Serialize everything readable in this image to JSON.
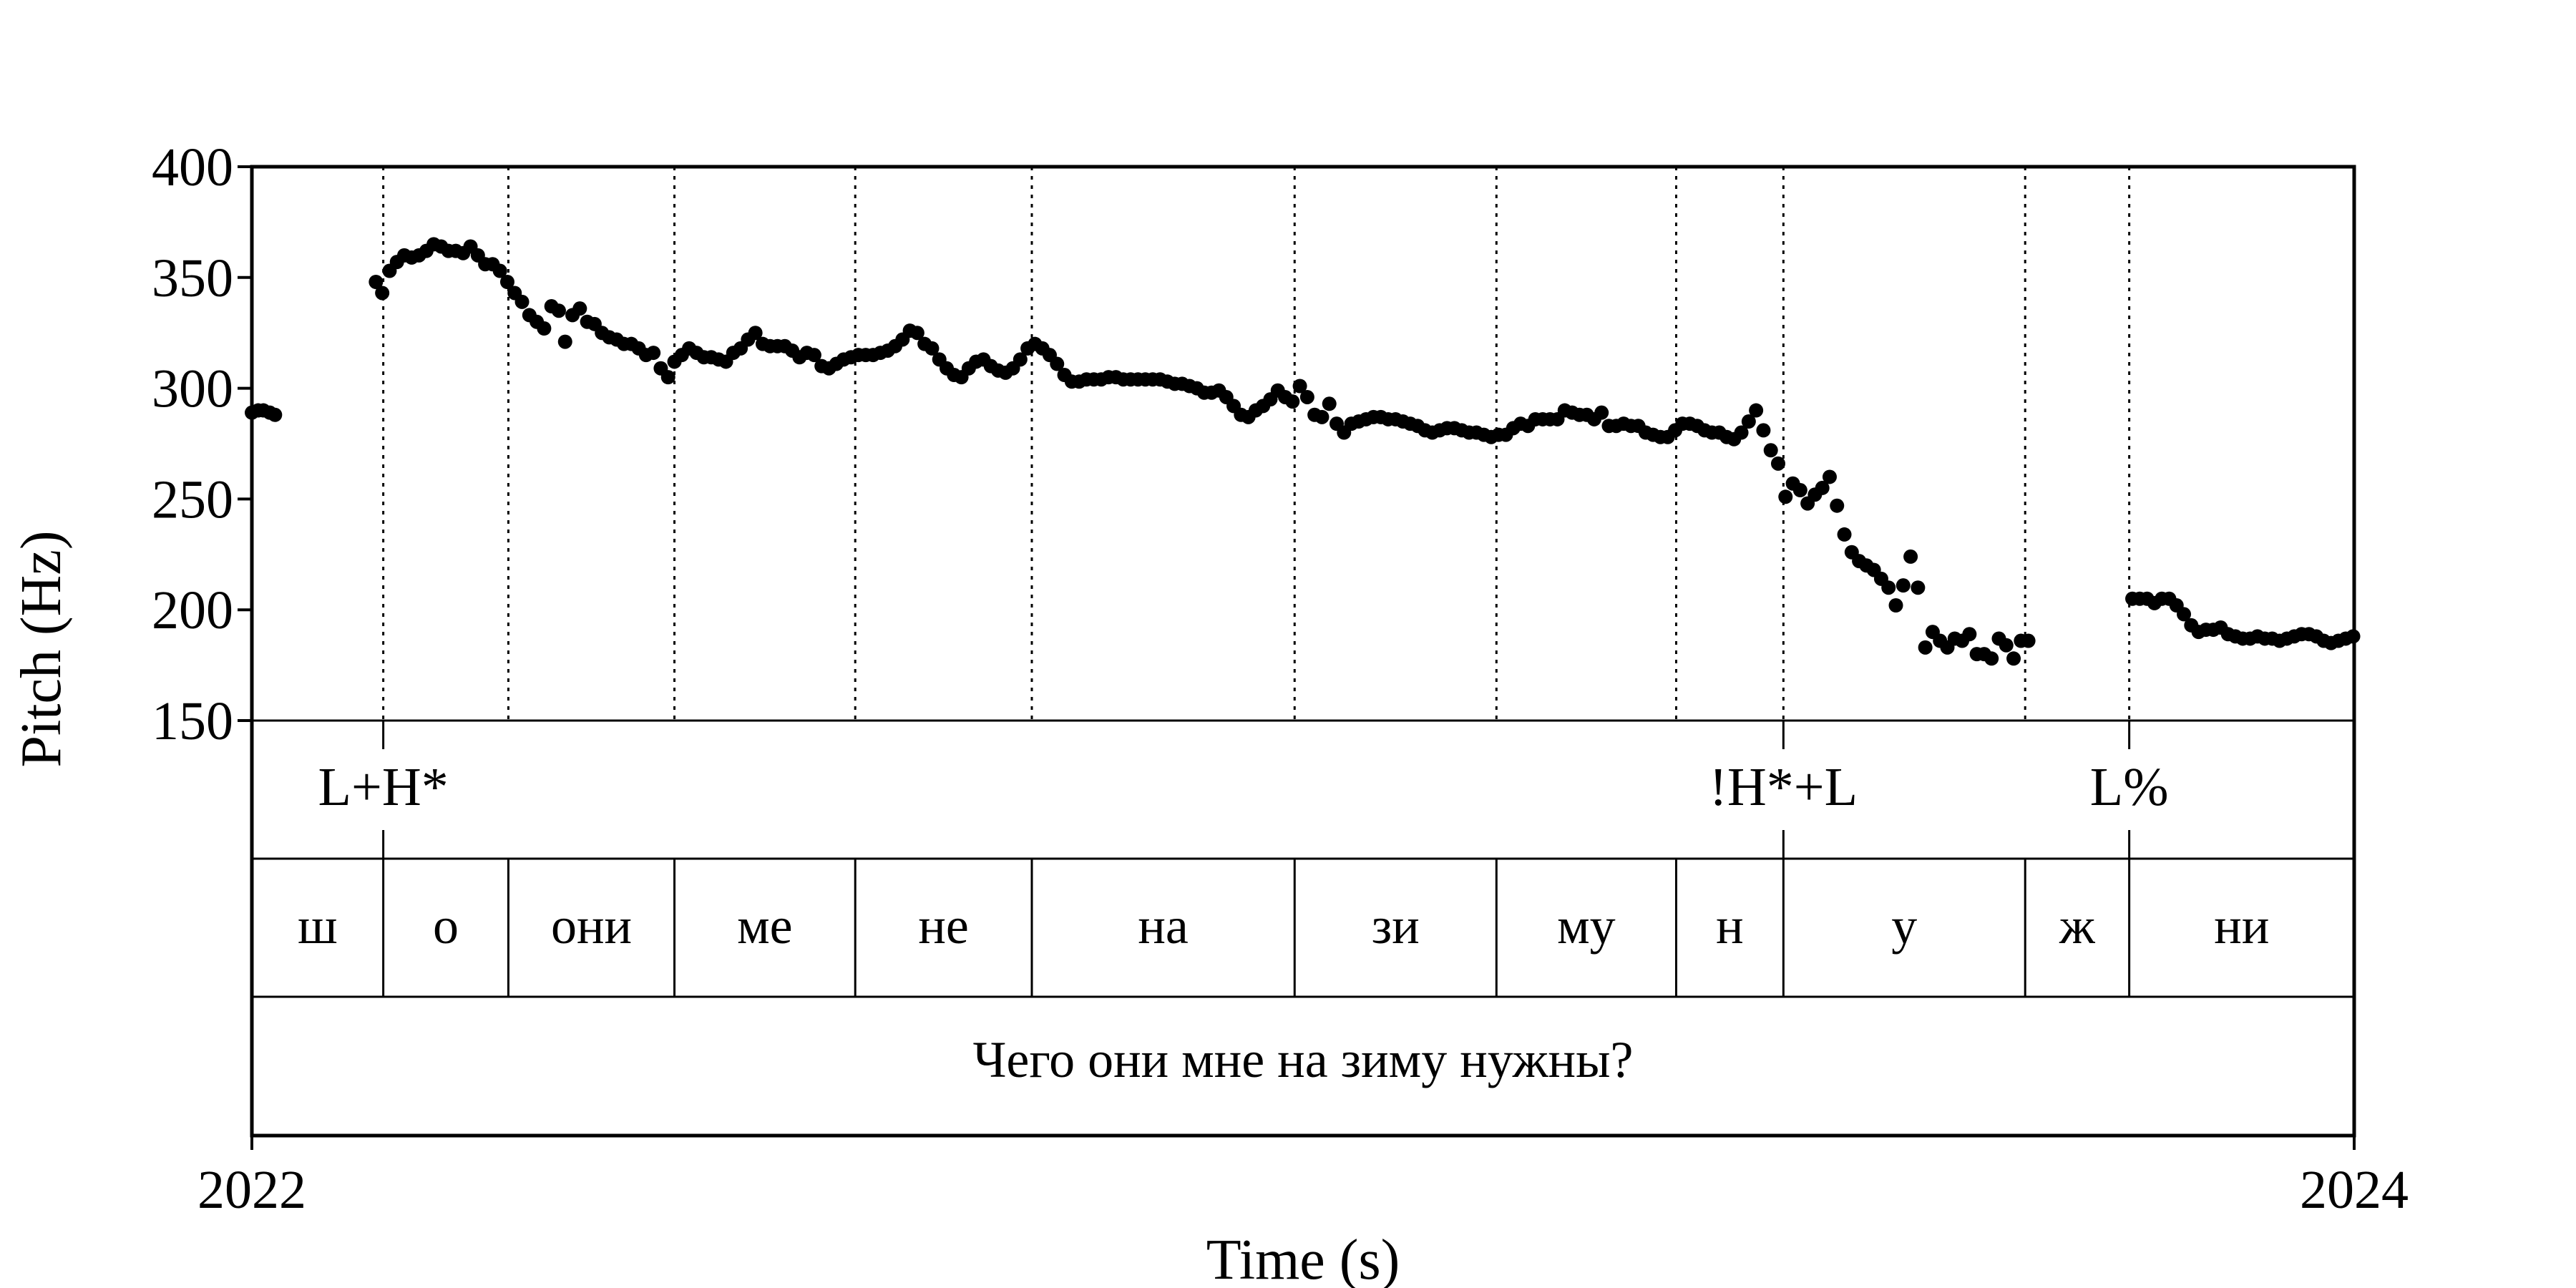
{
  "chart_data": {
    "type": "scatter",
    "title": "",
    "xlabel": "Time (s)",
    "ylabel": "Pitch (Hz)",
    "xlim": [
      2022,
      2024
    ],
    "ylim": [
      150,
      400
    ],
    "y_ticks": [
      "400",
      "350",
      "300",
      "250",
      "200",
      "150"
    ],
    "x_ticks": [
      "2022",
      "2024"
    ],
    "grid": false,
    "boundaries": [
      2022.125,
      2022.244,
      2022.402,
      2022.574,
      2022.742,
      2022.992,
      2023.184,
      2023.355,
      2023.457,
      2023.687,
      2023.786
    ],
    "tiers": {
      "tones": [
        {
          "t": 2022.125,
          "label": "L+H*"
        },
        {
          "t": 2023.457,
          "label": "!H*+L"
        },
        {
          "t": 2023.786,
          "label": "L%"
        }
      ],
      "syllables": [
        {
          "start": 2022.0,
          "end": 2022.125,
          "label": "ш"
        },
        {
          "start": 2022.125,
          "end": 2022.244,
          "label": "о"
        },
        {
          "start": 2022.244,
          "end": 2022.402,
          "label": "они"
        },
        {
          "start": 2022.402,
          "end": 2022.574,
          "label": "ме"
        },
        {
          "start": 2022.574,
          "end": 2022.742,
          "label": "не"
        },
        {
          "start": 2022.742,
          "end": 2022.992,
          "label": "на"
        },
        {
          "start": 2022.992,
          "end": 2023.184,
          "label": "зи"
        },
        {
          "start": 2023.184,
          "end": 2023.355,
          "label": "му"
        },
        {
          "start": 2023.355,
          "end": 2023.457,
          "label": "н"
        },
        {
          "start": 2023.457,
          "end": 2023.687,
          "label": "у"
        },
        {
          "start": 2023.687,
          "end": 2023.786,
          "label": "ж"
        },
        {
          "start": 2023.786,
          "end": 2024.0,
          "label": "ни"
        }
      ],
      "sentence": "Чего они мне на зиму нужны?"
    },
    "series": [
      {
        "points": [
          [
            2022.0,
            289
          ],
          [
            2022.006,
            290
          ],
          [
            2022.011,
            290
          ],
          [
            2022.017,
            289
          ],
          [
            2022.022,
            288
          ],
          [
            2022.118,
            348
          ],
          [
            2022.124,
            343
          ],
          [
            2022.131,
            353
          ],
          [
            2022.138,
            357
          ],
          [
            2022.145,
            360
          ],
          [
            2022.152,
            359
          ],
          [
            2022.159,
            360
          ],
          [
            2022.166,
            362
          ],
          [
            2022.173,
            365
          ],
          [
            2022.18,
            364
          ],
          [
            2022.187,
            362
          ],
          [
            2022.194,
            362
          ],
          [
            2022.201,
            361
          ],
          [
            2022.208,
            364
          ],
          [
            2022.215,
            360
          ],
          [
            2022.222,
            356
          ],
          [
            2022.229,
            356
          ],
          [
            2022.236,
            353
          ],
          [
            2022.243,
            348
          ],
          [
            2022.25,
            343
          ],
          [
            2022.257,
            339
          ],
          [
            2022.264,
            333
          ],
          [
            2022.271,
            330
          ],
          [
            2022.278,
            327
          ],
          [
            2022.285,
            337
          ],
          [
            2022.292,
            335
          ],
          [
            2022.298,
            321
          ],
          [
            2022.305,
            333
          ],
          [
            2022.312,
            336
          ],
          [
            2022.319,
            330
          ],
          [
            2022.326,
            329
          ],
          [
            2022.333,
            325
          ],
          [
            2022.34,
            323
          ],
          [
            2022.347,
            322
          ],
          [
            2022.354,
            320
          ],
          [
            2022.361,
            320
          ],
          [
            2022.368,
            318
          ],
          [
            2022.375,
            315
          ],
          [
            2022.382,
            316
          ],
          [
            2022.389,
            309
          ],
          [
            2022.396,
            305
          ],
          [
            2022.402,
            312
          ],
          [
            2022.409,
            315
          ],
          [
            2022.416,
            318
          ],
          [
            2022.423,
            316
          ],
          [
            2022.43,
            314
          ],
          [
            2022.437,
            314
          ],
          [
            2022.444,
            313
          ],
          [
            2022.451,
            312
          ],
          [
            2022.458,
            316
          ],
          [
            2022.465,
            318
          ],
          [
            2022.472,
            322
          ],
          [
            2022.479,
            325
          ],
          [
            2022.486,
            320
          ],
          [
            2022.493,
            319
          ],
          [
            2022.5,
            319
          ],
          [
            2022.507,
            319
          ],
          [
            2022.514,
            317
          ],
          [
            2022.521,
            314
          ],
          [
            2022.528,
            316
          ],
          [
            2022.535,
            315
          ],
          [
            2022.542,
            310
          ],
          [
            2022.549,
            309
          ],
          [
            2022.556,
            311
          ],
          [
            2022.563,
            313
          ],
          [
            2022.57,
            314
          ],
          [
            2022.577,
            315
          ],
          [
            2022.584,
            315
          ],
          [
            2022.591,
            315
          ],
          [
            2022.598,
            316
          ],
          [
            2022.605,
            317
          ],
          [
            2022.612,
            319
          ],
          [
            2022.619,
            322
          ],
          [
            2022.626,
            326
          ],
          [
            2022.633,
            325
          ],
          [
            2022.64,
            320
          ],
          [
            2022.647,
            318
          ],
          [
            2022.654,
            313
          ],
          [
            2022.661,
            309
          ],
          [
            2022.668,
            306
          ],
          [
            2022.675,
            305
          ],
          [
            2022.682,
            309
          ],
          [
            2022.689,
            312
          ],
          [
            2022.696,
            313
          ],
          [
            2022.703,
            310
          ],
          [
            2022.71,
            308
          ],
          [
            2022.717,
            307
          ],
          [
            2022.724,
            309
          ],
          [
            2022.731,
            313
          ],
          [
            2022.738,
            318
          ],
          [
            2022.745,
            320
          ],
          [
            2022.752,
            318
          ],
          [
            2022.759,
            315
          ],
          [
            2022.766,
            311
          ],
          [
            2022.773,
            306
          ],
          [
            2022.78,
            303
          ],
          [
            2022.787,
            303
          ],
          [
            2022.794,
            304
          ],
          [
            2022.801,
            304
          ],
          [
            2022.808,
            304
          ],
          [
            2022.815,
            305
          ],
          [
            2022.822,
            305
          ],
          [
            2022.829,
            304
          ],
          [
            2022.836,
            304
          ],
          [
            2022.843,
            304
          ],
          [
            2022.85,
            304
          ],
          [
            2022.857,
            304
          ],
          [
            2022.864,
            304
          ],
          [
            2022.871,
            303
          ],
          [
            2022.878,
            302
          ],
          [
            2022.885,
            302
          ],
          [
            2022.892,
            301
          ],
          [
            2022.899,
            300
          ],
          [
            2022.906,
            298
          ],
          [
            2022.913,
            298
          ],
          [
            2022.92,
            299
          ],
          [
            2022.927,
            296
          ],
          [
            2022.934,
            292
          ],
          [
            2022.941,
            288
          ],
          [
            2022.948,
            287
          ],
          [
            2022.955,
            290
          ],
          [
            2022.962,
            292
          ],
          [
            2022.969,
            295
          ],
          [
            2022.976,
            299
          ],
          [
            2022.983,
            296
          ],
          [
            2022.99,
            294
          ],
          [
            2022.997,
            301
          ],
          [
            2023.004,
            296
          ],
          [
            2023.011,
            288
          ],
          [
            2023.018,
            287
          ],
          [
            2023.025,
            293
          ],
          [
            2023.032,
            284
          ],
          [
            2023.039,
            280
          ],
          [
            2023.046,
            284
          ],
          [
            2023.053,
            285
          ],
          [
            2023.06,
            286
          ],
          [
            2023.067,
            287
          ],
          [
            2023.074,
            287
          ],
          [
            2023.081,
            286
          ],
          [
            2023.088,
            286
          ],
          [
            2023.095,
            285
          ],
          [
            2023.102,
            284
          ],
          [
            2023.109,
            283
          ],
          [
            2023.116,
            281
          ],
          [
            2023.123,
            280
          ],
          [
            2023.13,
            281
          ],
          [
            2023.137,
            282
          ],
          [
            2023.144,
            282
          ],
          [
            2023.151,
            281
          ],
          [
            2023.158,
            280
          ],
          [
            2023.165,
            280
          ],
          [
            2023.172,
            279
          ],
          [
            2023.179,
            278
          ],
          [
            2023.186,
            279
          ],
          [
            2023.193,
            279
          ],
          [
            2023.2,
            282
          ],
          [
            2023.207,
            284
          ],
          [
            2023.214,
            283
          ],
          [
            2023.221,
            286
          ],
          [
            2023.228,
            286
          ],
          [
            2023.235,
            286
          ],
          [
            2023.242,
            286
          ],
          [
            2023.249,
            290
          ],
          [
            2023.256,
            289
          ],
          [
            2023.263,
            288
          ],
          [
            2023.27,
            288
          ],
          [
            2023.277,
            286
          ],
          [
            2023.284,
            289
          ],
          [
            2023.291,
            283
          ],
          [
            2023.298,
            283
          ],
          [
            2023.305,
            284
          ],
          [
            2023.312,
            283
          ],
          [
            2023.319,
            283
          ],
          [
            2023.326,
            280
          ],
          [
            2023.333,
            279
          ],
          [
            2023.34,
            278
          ],
          [
            2023.347,
            278
          ],
          [
            2023.354,
            281
          ],
          [
            2023.361,
            284
          ],
          [
            2023.368,
            284
          ],
          [
            2023.375,
            283
          ],
          [
            2023.382,
            281
          ],
          [
            2023.389,
            280
          ],
          [
            2023.396,
            280
          ],
          [
            2023.403,
            278
          ],
          [
            2023.41,
            277
          ],
          [
            2023.417,
            280
          ],
          [
            2023.424,
            285
          ],
          [
            2023.431,
            290
          ],
          [
            2023.438,
            281
          ],
          [
            2023.445,
            272
          ],
          [
            2023.452,
            266
          ],
          [
            2023.459,
            251
          ],
          [
            2023.466,
            257
          ],
          [
            2023.473,
            254
          ],
          [
            2023.48,
            248
          ],
          [
            2023.487,
            252
          ],
          [
            2023.494,
            255
          ],
          [
            2023.501,
            260
          ],
          [
            2023.508,
            247
          ],
          [
            2023.515,
            234
          ],
          [
            2023.522,
            226
          ],
          [
            2023.529,
            222
          ],
          [
            2023.536,
            220
          ],
          [
            2023.543,
            218
          ],
          [
            2023.55,
            214
          ],
          [
            2023.557,
            210
          ],
          [
            2023.564,
            202
          ],
          [
            2023.571,
            211
          ],
          [
            2023.578,
            224
          ],
          [
            2023.585,
            210
          ],
          [
            2023.592,
            183
          ],
          [
            2023.599,
            190
          ],
          [
            2023.606,
            186
          ],
          [
            2023.613,
            183
          ],
          [
            2023.62,
            187
          ],
          [
            2023.627,
            186
          ],
          [
            2023.634,
            189
          ],
          [
            2023.641,
            180
          ],
          [
            2023.648,
            180
          ],
          [
            2023.655,
            178
          ],
          [
            2023.662,
            187
          ],
          [
            2023.669,
            184
          ],
          [
            2023.676,
            178
          ],
          [
            2023.683,
            186
          ],
          [
            2023.69,
            186
          ],
          [
            2023.789,
            205
          ],
          [
            2023.796,
            205
          ],
          [
            2023.803,
            205
          ],
          [
            2023.81,
            203
          ],
          [
            2023.817,
            205
          ],
          [
            2023.824,
            205
          ],
          [
            2023.831,
            202
          ],
          [
            2023.838,
            198
          ],
          [
            2023.845,
            193
          ],
          [
            2023.852,
            190
          ],
          [
            2023.859,
            191
          ],
          [
            2023.866,
            191
          ],
          [
            2023.873,
            192
          ],
          [
            2023.88,
            189
          ],
          [
            2023.887,
            188
          ],
          [
            2023.894,
            187
          ],
          [
            2023.901,
            187
          ],
          [
            2023.908,
            188
          ],
          [
            2023.915,
            187
          ],
          [
            2023.922,
            187
          ],
          [
            2023.929,
            186
          ],
          [
            2023.936,
            187
          ],
          [
            2023.943,
            188
          ],
          [
            2023.95,
            189
          ],
          [
            2023.957,
            189
          ],
          [
            2023.964,
            188
          ],
          [
            2023.971,
            186
          ],
          [
            2023.978,
            185
          ],
          [
            2023.985,
            186
          ],
          [
            2023.992,
            187
          ],
          [
            2023.999,
            188
          ]
        ]
      }
    ]
  }
}
